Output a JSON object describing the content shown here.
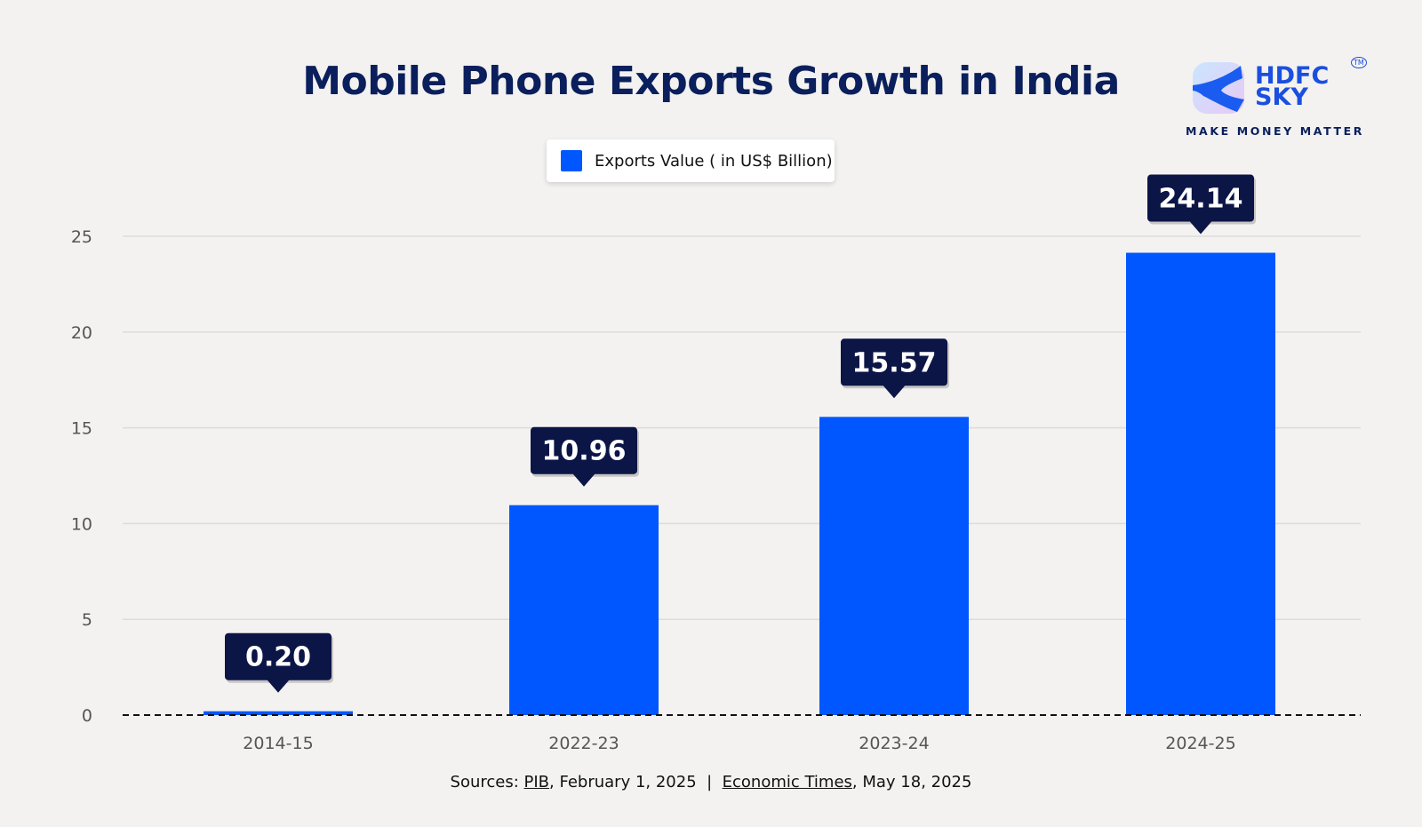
{
  "chart_data": {
    "type": "bar",
    "title": "Mobile Phone Exports Growth in India",
    "categories": [
      "2014-15",
      "2022-23",
      "2023-24",
      "2024-25"
    ],
    "series": [
      {
        "name": "Exports Value ( in US$ Billion)",
        "values": [
          0.2,
          10.96,
          15.57,
          24.14
        ]
      }
    ],
    "data_labels": [
      "0.20",
      "10.96",
      "15.57",
      "24.14"
    ],
    "ylim": [
      0,
      25
    ],
    "yticks": [
      0,
      5,
      10,
      15,
      20,
      25
    ],
    "grid": true,
    "legend_position": "top-center",
    "colors": {
      "bar": "#0057ff",
      "label_box": "#0b1546",
      "title": "#0a1f5c"
    }
  },
  "logo": {
    "brand_line1": "HDFC",
    "brand_line2": "SKY",
    "tagline": "MAKE MONEY MATTER",
    "tm": "TM"
  },
  "source": {
    "prefix": "Sources: ",
    "link1": "PIB",
    "text1": ", February 1, 2025  |  ",
    "link2": "Economic Times",
    "text2": ", May 18, 2025"
  }
}
